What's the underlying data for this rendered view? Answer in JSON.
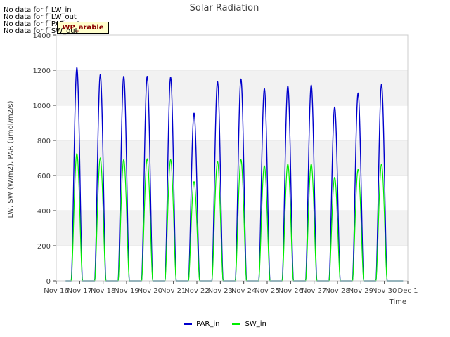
{
  "notices": [
    "No data for f_LW_in",
    "No data for f_LW_out",
    "No data for f_PAR_out",
    "No data for f_SW_out"
  ],
  "badge_label": "WP_arable",
  "chart_data": {
    "type": "line",
    "title": "Solar Radiation",
    "xlabel": "Time",
    "ylabel": "LW, SW (W/m2), PAR (umol/m2/s)",
    "ylim": [
      0,
      1400
    ],
    "yticks": [
      0,
      200,
      400,
      600,
      800,
      1000,
      1200,
      1400
    ],
    "xlim": [
      16,
      31
    ],
    "xticks": [
      16,
      17,
      18,
      19,
      20,
      21,
      22,
      23,
      24,
      25,
      26,
      27,
      28,
      29,
      30,
      31
    ],
    "xtick_labels": [
      "Nov 16",
      "Nov 17",
      "Nov 18",
      "Nov 19",
      "Nov 20",
      "Nov 21",
      "Nov 22",
      "Nov 23",
      "Nov 24",
      "Nov 25",
      "Nov 26",
      "Nov 27",
      "Nov 28",
      "Nov 29",
      "Nov 30",
      "Dec 1"
    ],
    "grid": true,
    "shaded_bands": [
      [
        200,
        400
      ],
      [
        600,
        800
      ],
      [
        1000,
        1200
      ]
    ],
    "legend_position": "bottom-center",
    "day_centers": [
      16.88,
      17.88,
      18.88,
      19.88,
      20.88,
      21.88,
      22.88,
      23.88,
      24.88,
      25.88,
      26.88,
      27.88,
      28.88,
      29.88
    ],
    "day_halfwidth": 0.24,
    "series": [
      {
        "name": "PAR_in",
        "color": "#0000cc",
        "peaks": [
          1215,
          1175,
          1165,
          1165,
          1160,
          955,
          1135,
          1150,
          1095,
          1110,
          1115,
          990,
          1070,
          1120
        ]
      },
      {
        "name": "SW_in",
        "color": "#00ee00",
        "peaks": [
          725,
          700,
          690,
          695,
          690,
          565,
          680,
          690,
          655,
          665,
          665,
          590,
          635,
          665
        ]
      }
    ]
  }
}
